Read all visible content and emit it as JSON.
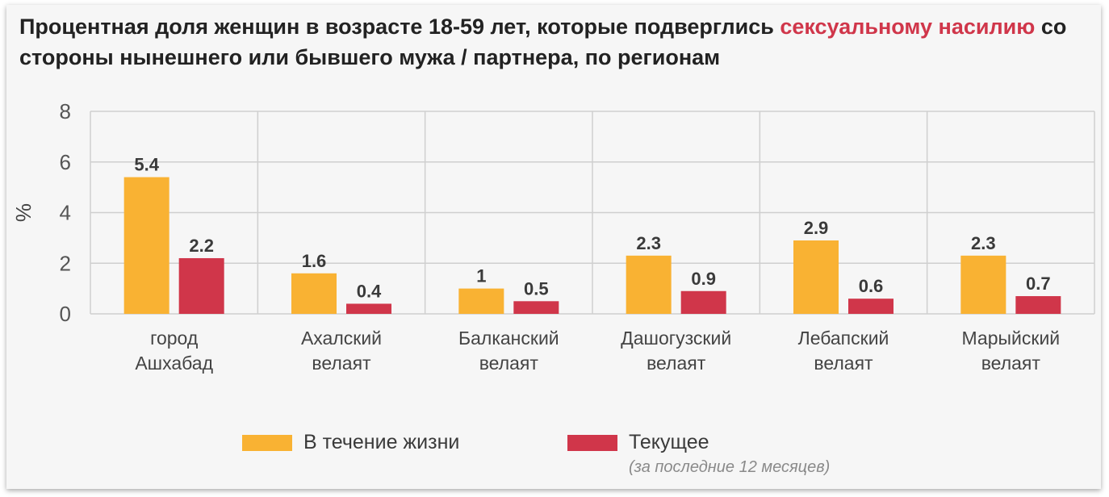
{
  "title": {
    "part1": "Процентная доля женщин в возрасте 18-59 лет, которые подверглись ",
    "accent": "сексуальному насилию",
    "part2": " со стороны нынешнего или бывшего мужа / партнера, по регионам"
  },
  "colors": {
    "lifetime": "#f9b233",
    "current": "#d0364a",
    "accent": "#d0364a",
    "grid": "#cfcfcf"
  },
  "legend": {
    "lifetime_label": "В течение жизни",
    "current_label": "Текущее",
    "current_note": "(за последние 12 месяцев)"
  },
  "chart_data": {
    "type": "bar",
    "ylabel": "%",
    "ylim": [
      0,
      8
    ],
    "yticks": [
      0,
      2,
      4,
      6,
      8
    ],
    "categories": [
      [
        "город",
        "Ашхабад"
      ],
      [
        "Ахалский",
        "велаят"
      ],
      [
        "Балканский",
        "велаят"
      ],
      [
        "Дашогузский",
        "велаят"
      ],
      [
        "Лебапский",
        "велаят"
      ],
      [
        "Марыйский",
        "велаят"
      ]
    ],
    "series": [
      {
        "name": "В течение жизни",
        "values": [
          5.4,
          1.6,
          1,
          2.3,
          2.9,
          2.3
        ]
      },
      {
        "name": "Текущее",
        "values": [
          2.2,
          0.4,
          0.5,
          0.9,
          0.6,
          0.7
        ]
      }
    ]
  }
}
